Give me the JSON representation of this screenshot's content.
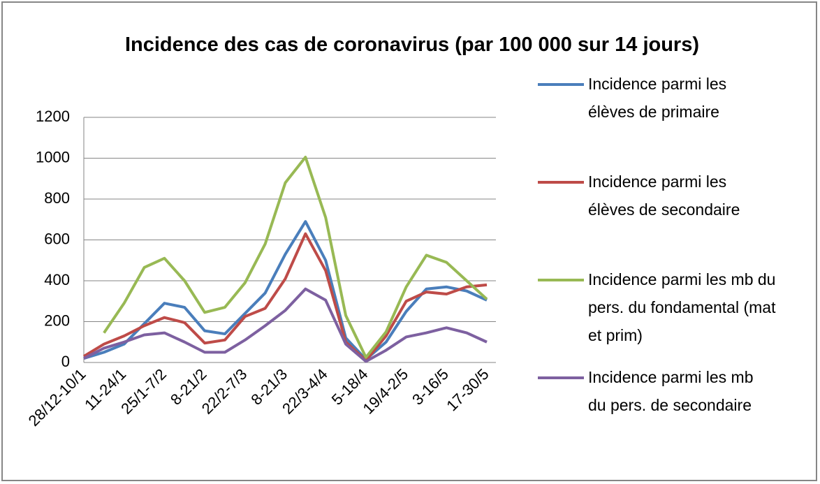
{
  "chart_data": {
    "type": "line",
    "title": "Incidence des cas de coronavirus (par 100 000 sur 14 jours)",
    "categories": [
      "28/12-10/1",
      null,
      "11-24/1",
      null,
      "25/1-7/2",
      null,
      "8-21/2",
      null,
      "22/2-7/3",
      null,
      "8-21/3",
      null,
      "22/3-4/4",
      null,
      "5-18/4",
      null,
      "19/4-2/5",
      null,
      "3-16/5",
      null,
      "17-30/5"
    ],
    "series": [
      {
        "name": "Incidence parmi les élèves de primaire",
        "color": "#4a7ebb",
        "values": [
          20,
          50,
          90,
          190,
          290,
          270,
          155,
          140,
          240,
          340,
          530,
          690,
          500,
          120,
          15,
          100,
          250,
          360,
          370,
          350,
          305
        ]
      },
      {
        "name": "Incidence parmi les élèves de secondaire",
        "color": "#be4b48",
        "values": [
          30,
          90,
          130,
          180,
          220,
          195,
          95,
          110,
          225,
          265,
          410,
          630,
          450,
          100,
          10,
          130,
          300,
          345,
          335,
          370,
          380
        ]
      },
      {
        "name": "Incidence parmi les mb du pers. du fondamental (mat et prim)",
        "color": "#98b954",
        "values": [
          null,
          145,
          290,
          465,
          510,
          400,
          245,
          270,
          390,
          580,
          880,
          1005,
          710,
          230,
          25,
          150,
          370,
          525,
          490,
          400,
          310
        ]
      },
      {
        "name": "Incidence parmi les mb du pers. de secondaire",
        "color": "#7d60a0",
        "values": [
          20,
          70,
          100,
          135,
          145,
          100,
          50,
          50,
          110,
          180,
          255,
          360,
          305,
          90,
          5,
          60,
          125,
          145,
          170,
          145,
          100
        ]
      }
    ],
    "ylim": [
      0,
      1200
    ],
    "yticks": [
      0,
      200,
      400,
      600,
      800,
      1000,
      1200
    ],
    "grid": true,
    "legend": "right"
  }
}
